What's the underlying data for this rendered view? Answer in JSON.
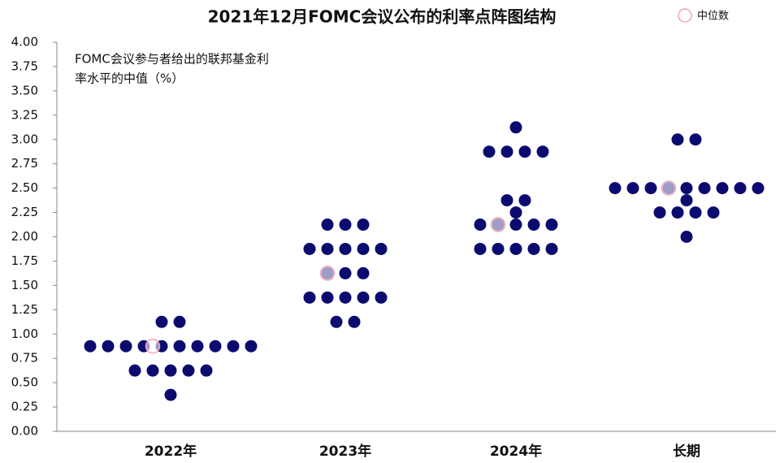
{
  "chart_data": {
    "type": "dot_plot",
    "title": "2021年12月FOMC会议公布的利率点阵图结构",
    "annotation": [
      "FOMC会议参与者给出的联邦基金利",
      "率水平的中值（%）"
    ],
    "legend_label": "中位数",
    "categories": [
      "2022年",
      "2023年",
      "2024年",
      "长期"
    ],
    "values": [
      [
        1.125,
        1.125,
        0.875,
        0.875,
        0.875,
        0.875,
        0.875,
        0.875,
        0.875,
        0.875,
        0.875,
        0.875,
        0.625,
        0.625,
        0.625,
        0.625,
        0.625,
        0.375
      ],
      [
        2.125,
        2.125,
        2.125,
        1.875,
        1.875,
        1.875,
        1.875,
        1.875,
        1.625,
        1.625,
        1.625,
        1.375,
        1.375,
        1.375,
        1.375,
        1.375,
        1.125,
        1.125
      ],
      [
        3.125,
        2.875,
        2.875,
        2.875,
        2.875,
        2.375,
        2.375,
        2.25,
        2.125,
        2.125,
        2.125,
        2.125,
        2.125,
        1.875,
        1.875,
        1.875,
        1.875,
        1.875
      ],
      [
        3.0,
        3.0,
        2.5,
        2.5,
        2.5,
        2.5,
        2.5,
        2.5,
        2.5,
        2.5,
        2.5,
        2.375,
        2.25,
        2.25,
        2.25,
        2.25,
        2.0
      ]
    ],
    "medians": [
      0.875,
      1.625,
      2.125,
      2.5
    ],
    "color": "#0b0b6f",
    "median_color": "#f2a3b5",
    "ylim": [
      0,
      4
    ],
    "yticks": [
      {
        "value": 0,
        "label": "0.00"
      },
      {
        "value": 0.25,
        "label": "0.25"
      },
      {
        "value": 0.5,
        "label": "0.50"
      },
      {
        "value": 0.75,
        "label": "0.75"
      },
      {
        "value": 1,
        "label": "1.00"
      },
      {
        "value": 1.25,
        "label": "1.25"
      },
      {
        "value": 1.5,
        "label": "1.50"
      },
      {
        "value": 1.75,
        "label": "1.75"
      },
      {
        "value": 2,
        "label": "2.00"
      },
      {
        "value": 2.25,
        "label": "2.25"
      },
      {
        "value": 2.5,
        "label": "2.50"
      },
      {
        "value": 2.75,
        "label": "2.75"
      },
      {
        "value": 3,
        "label": "3.00"
      },
      {
        "value": 3.25,
        "label": "3.25"
      },
      {
        "value": 3.5,
        "label": "3.50"
      },
      {
        "value": 3.75,
        "label": "3.75"
      },
      {
        "value": 4,
        "label": "4.00"
      }
    ]
  }
}
